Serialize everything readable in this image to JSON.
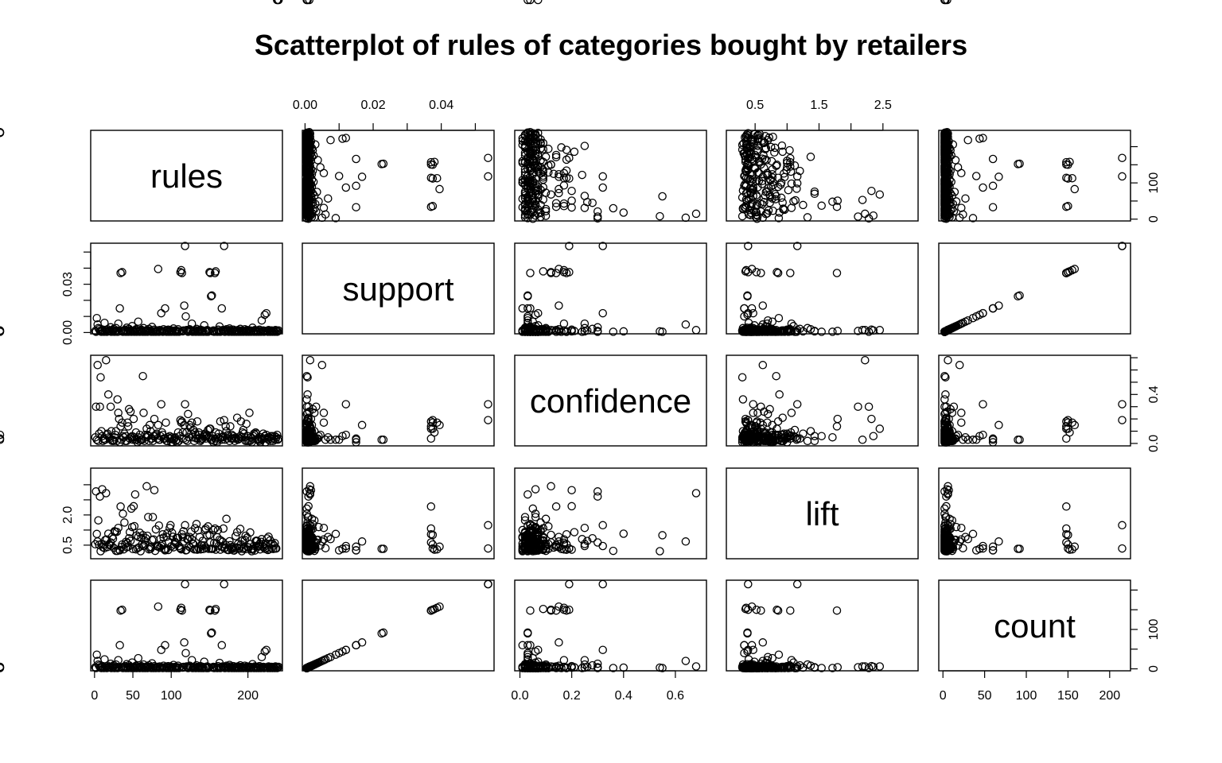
{
  "chart_data": {
    "type": "scatter",
    "title": "Scatterplot of rules of categories bought by retailers",
    "variables": [
      "rules",
      "support",
      "confidence",
      "lift",
      "count"
    ],
    "axes": {
      "rules": {
        "range": [
          -5,
          245
        ],
        "ticks": [
          0,
          50,
          100,
          200
        ],
        "tick_labels": [
          "0",
          "50",
          "100",
          "200"
        ]
      },
      "support": {
        "range": [
          -0.0008,
          0.0555
        ],
        "ticks": [
          0.0,
          0.01,
          0.02,
          0.03,
          0.04,
          0.05
        ],
        "tick_labels_top": [
          "0.00",
          "",
          "0.02",
          "",
          "0.04",
          ""
        ],
        "tick_labels_left": [
          "0.00",
          "",
          "",
          "0.03",
          "",
          ""
        ]
      },
      "confidence": {
        "range": [
          -0.02,
          0.72
        ],
        "ticks": [
          0.0,
          0.2,
          0.4,
          0.6
        ],
        "tick_labels_bottom": [
          "0.0",
          "0.2",
          "0.4",
          "0.6"
        ],
        "right_ticks": [
          0.0,
          0.1,
          0.2,
          0.3,
          0.4,
          0.5,
          0.6,
          0.7
        ],
        "tick_labels_right": [
          "0.0",
          "",
          "",
          "",
          "0.4",
          "",
          "",
          ""
        ]
      },
      "lift": {
        "range": [
          0.05,
          3.05
        ],
        "ticks": [
          0.5,
          1.0,
          1.5,
          2.0,
          2.5
        ],
        "tick_labels_top": [
          "0.5",
          "",
          "1.5",
          "",
          "2.5"
        ],
        "tick_labels_left": [
          "0.5",
          "",
          "2.0",
          "",
          ""
        ]
      },
      "count": {
        "range": [
          -5,
          225
        ],
        "ticks": [
          0,
          50,
          100,
          150,
          200
        ],
        "tick_labels": [
          "0",
          "50",
          "100",
          "150",
          "200"
        ],
        "right_ticks": [
          0,
          50,
          100,
          150,
          200
        ],
        "tick_labels_right": [
          "0",
          "",
          "100",
          "",
          ""
        ]
      }
    },
    "grid": false,
    "legend": "none",
    "point_style": "open-circle",
    "n_points": 240,
    "rules": [
      1,
      2,
      3,
      4,
      5,
      6,
      7,
      8,
      9,
      10,
      11,
      12,
      13,
      14,
      15,
      16,
      17,
      18,
      19,
      20,
      21,
      22,
      23,
      24,
      25,
      26,
      27,
      28,
      29,
      30,
      31,
      32,
      33,
      34,
      35,
      36,
      37,
      38,
      39,
      40,
      41,
      42,
      43,
      44,
      45,
      46,
      47,
      48,
      49,
      50,
      51,
      52,
      53,
      54,
      55,
      56,
      57,
      58,
      59,
      60,
      61,
      62,
      63,
      64,
      65,
      66,
      67,
      68,
      69,
      70,
      71,
      72,
      73,
      74,
      75,
      76,
      77,
      78,
      79,
      80,
      81,
      82,
      83,
      84,
      85,
      86,
      87,
      88,
      89,
      90,
      91,
      92,
      93,
      94,
      95,
      96,
      97,
      98,
      99,
      100,
      101,
      102,
      103,
      104,
      105,
      106,
      107,
      108,
      109,
      110,
      111,
      112,
      113,
      114,
      115,
      116,
      117,
      118,
      119,
      120,
      121,
      122,
      123,
      124,
      125,
      126,
      127,
      128,
      129,
      130,
      131,
      132,
      133,
      134,
      135,
      136,
      137,
      138,
      139,
      140,
      141,
      142,
      143,
      144,
      145,
      146,
      147,
      148,
      149,
      150,
      151,
      152,
      153,
      154,
      155,
      156,
      157,
      158,
      159,
      160,
      161,
      162,
      163,
      164,
      165,
      166,
      167,
      168,
      169,
      170,
      171,
      172,
      173,
      174,
      175,
      176,
      177,
      178,
      179,
      180,
      181,
      182,
      183,
      184,
      185,
      186,
      187,
      188,
      189,
      190,
      191,
      192,
      193,
      194,
      195,
      196,
      197,
      198,
      199,
      200,
      201,
      202,
      203,
      204,
      205,
      206,
      207,
      208,
      209,
      210,
      211,
      212,
      213,
      214,
      215,
      216,
      217,
      218,
      219,
      220,
      221,
      222,
      223,
      224,
      225,
      226,
      227,
      228,
      229,
      230,
      231,
      232,
      233,
      234,
      235,
      236,
      237,
      238,
      239,
      240
    ],
    "count": [
      4,
      2,
      36,
      20,
      11,
      8,
      4,
      3,
      2,
      5,
      7,
      2,
      24,
      3,
      6,
      2,
      8,
      3,
      4,
      5,
      13,
      2,
      6,
      3,
      9,
      2,
      4,
      11,
      5,
      2,
      22,
      3,
      60,
      148,
      4,
      150,
      2,
      5,
      3,
      7,
      2,
      12,
      4,
      2,
      9,
      3,
      5,
      2,
      16,
      3,
      4,
      2,
      6,
      8,
      2,
      3,
      27,
      4,
      2,
      5,
      7,
      3,
      2,
      11,
      4,
      2,
      3,
      6,
      2,
      4,
      9,
      3,
      5,
      2,
      14,
      3,
      2,
      7,
      4,
      2,
      3,
      5,
      158,
      2,
      6,
      3,
      48,
      4,
      2,
      8,
      3,
      60,
      5,
      2,
      4,
      7,
      2,
      3,
      6,
      2,
      4,
      3,
      10,
      2,
      5,
      3,
      2,
      4,
      8,
      2,
      3,
      150,
      155,
      148,
      3,
      5,
      67,
      215,
      40,
      6,
      4,
      2,
      3,
      8,
      5,
      3,
      22,
      2,
      4,
      3,
      6,
      2,
      9,
      3,
      5,
      2,
      4,
      7,
      2,
      3,
      5,
      2,
      18,
      4,
      3,
      2,
      6,
      2,
      4,
      150,
      148,
      90,
      92,
      3,
      5,
      2,
      148,
      152,
      4,
      2,
      7,
      3,
      15,
      2,
      4,
      60,
      6,
      3,
      215,
      2,
      5,
      8,
      3,
      4,
      2,
      10,
      6,
      3,
      2,
      4,
      7,
      2,
      3,
      5,
      2,
      4,
      6,
      2,
      3,
      9,
      2,
      5,
      3,
      2,
      4,
      8,
      3,
      2,
      6,
      4,
      2,
      3,
      5,
      2,
      4,
      12,
      3,
      2,
      6,
      4,
      2,
      5,
      3,
      2,
      7,
      4,
      2,
      30,
      3,
      5,
      2,
      44,
      4,
      48,
      3,
      2,
      6,
      4,
      2,
      3,
      5,
      2,
      4,
      3,
      2,
      6,
      4,
      2,
      3,
      5
    ],
    "confidence": [
      0.05,
      0.3,
      0.03,
      0.64,
      0.02,
      0.08,
      0.3,
      0.54,
      0.1,
      0.06,
      0.02,
      0.04,
      0.03,
      0.03,
      0.68,
      0.07,
      0.08,
      0.4,
      0.05,
      0.04,
      0.3,
      0.1,
      0.02,
      0.03,
      0.02,
      0.05,
      0.07,
      0.1,
      0.02,
      0.36,
      0.25,
      0.2,
      0.01,
      0.14,
      0.03,
      0.17,
      0.06,
      0.05,
      0.08,
      0.02,
      0.06,
      0.02,
      0.17,
      0.14,
      0.28,
      0.04,
      0.26,
      0.05,
      0.06,
      0.03,
      0.2,
      0.05,
      0.03,
      0.09,
      0.03,
      0.01,
      0.05,
      0.02,
      0.07,
      0.03,
      0.03,
      0.03,
      0.55,
      0.25,
      0.02,
      0.07,
      0.05,
      0.12,
      0.07,
      0.06,
      0.02,
      0.15,
      0.1,
      0.04,
      0.04,
      0.02,
      0.06,
      0.2,
      0.06,
      0.07,
      0.08,
      0.04,
      0.15,
      0.03,
      0.03,
      0.06,
      0.32,
      0.09,
      0.07,
      0.04,
      0.04,
      0.04,
      0.17,
      0.02,
      0.02,
      0.05,
      0.04,
      0.06,
      0.04,
      0.01,
      0.05,
      0.01,
      0.03,
      0.04,
      0.05,
      0.02,
      0.03,
      0.01,
      0.09,
      0.02,
      0.06,
      0.19,
      0.17,
      0.18,
      0.09,
      0.04,
      0.15,
      0.32,
      0.03,
      0.09,
      0.02,
      0.24,
      0.05,
      0.15,
      0.13,
      0.08,
      0.17,
      0.05,
      0.11,
      0.02,
      0.09,
      0.07,
      0.04,
      0.18,
      0.04,
      0.09,
      0.07,
      0.02,
      0.03,
      0.04,
      0.04,
      0.06,
      0.07,
      0.08,
      0.04,
      0.06,
      0.07,
      0.11,
      0.05,
      0.12,
      0.12,
      0.03,
      0.03,
      0.06,
      0.01,
      0.02,
      0.04,
      0.09,
      0.02,
      0.01,
      0.05,
      0.08,
      0.04,
      0.18,
      0.05,
      0.03,
      0.05,
      0.06,
      0.19,
      0.03,
      0.14,
      0.1,
      0.04,
      0.07,
      0.06,
      0.02,
      0.14,
      0.04,
      0.07,
      0.04,
      0.06,
      0.04,
      0.02,
      0.05,
      0.04,
      0.21,
      0.03,
      0.04,
      0.04,
      0.06,
      0.18,
      0.05,
      0.09,
      0.11,
      0.08,
      0.05,
      0.02,
      0.16,
      0.02,
      0.06,
      0.02,
      0.25,
      0.02,
      0.05,
      0.01,
      0.04,
      0.06,
      0.08,
      0.07,
      0.09,
      0.08,
      0.03,
      0.04,
      0.03,
      0.02,
      0.01,
      0.05,
      0.03,
      0.04,
      0.08,
      0.04,
      0.06,
      0.01,
      0.07,
      0.04,
      0.05,
      0.03,
      0.05,
      0.02,
      0.06,
      0.04,
      0.06,
      0.02,
      0.04,
      0.06,
      0.03,
      0.05,
      0.07,
      0.03,
      0.04,
      0.05,
      0.07
    ],
    "lift": [
      0.53,
      2.28,
      0.87,
      0.62,
      1.32,
      0.51,
      2.11,
      0.3,
      0.54,
      2.35,
      0.43,
      0.52,
      0.4,
      0.67,
      2.22,
      0.69,
      0.44,
      0.88,
      0.52,
      0.51,
      0.59,
      0.48,
      0.78,
      0.71,
      0.41,
      0.96,
      0.94,
      0.31,
      0.94,
      0.31,
      1.07,
      0.35,
      0.33,
      1.78,
      0.44,
      0.52,
      1.54,
      0.36,
      1.25,
      0.53,
      0.61,
      0.43,
      0.58,
      0.45,
      0.73,
      0.93,
      0.64,
      1.71,
      1.1,
      0.37,
      1.79,
      1.13,
      2.18,
      0.36,
      0.82,
      0.4,
      0.77,
      0.43,
      0.91,
      0.3,
      0.74,
      0.53,
      0.83,
      0.47,
      0.66,
      0.52,
      0.73,
      2.45,
      0.81,
      1.43,
      0.36,
      0.43,
      0.38,
      0.44,
      0.67,
      1.43,
      0.69,
      2.32,
      0.31,
      1.02,
      0.47,
      0.46,
      0.45,
      1.15,
      0.42,
      0.71,
      0.47,
      0.54,
      0.86,
      0.75,
      0.36,
      0.33,
      0.36,
      0.78,
      0.9,
      0.34,
      0.61,
      1.07,
      1.16,
      0.46,
      0.91,
      0.78,
      0.43,
      0.52,
      0.61,
      0.56,
      0.74,
      0.74,
      0.74,
      0.47,
      0.42,
      0.39,
      0.36,
      0.86,
      0.77,
      0.96,
      0.62,
      1.16,
      0.33,
      0.34,
      0.69,
      0.7,
      0.46,
      0.77,
      0.42,
      0.95,
      0.69,
      0.56,
      0.54,
      0.36,
      1.06,
      0.36,
      1.2,
      0.35,
      0.99,
      0.39,
      0.77,
      0.36,
      0.5,
      0.49,
      0.64,
      0.37,
      0.49,
      1.0,
      1.05,
      0.4,
      0.83,
      1.12,
      0.38,
      0.84,
      0.59,
      0.38,
      0.38,
      0.38,
      1.0,
      0.57,
      1.05,
      0.35,
      0.56,
      0.76,
      1.0,
      0.48,
      0.68,
      0.35,
      0.65,
      0.45,
      0.61,
      1.05,
      0.39,
      0.42,
      0.51,
      1.37,
      0.35,
      0.34,
      0.34,
      0.63,
      0.5,
      0.38,
      0.44,
      0.37,
      0.33,
      0.32,
      0.41,
      0.8,
      0.43,
      0.93,
      0.54,
      0.41,
      0.38,
      1.04,
      0.53,
      0.3,
      0.66,
      0.37,
      0.41,
      0.67,
      0.81,
      0.37,
      0.75,
      0.43,
      0.42,
      0.54,
      0.92,
      0.36,
      0.3,
      0.37,
      0.38,
      0.48,
      0.32,
      0.63,
      0.65,
      0.64,
      0.48,
      0.45,
      0.54,
      0.36,
      0.61,
      0.7,
      0.46,
      0.54,
      0.44,
      0.38,
      0.55,
      0.39,
      0.72,
      0.34,
      0.78,
      0.36,
      0.66,
      0.53,
      0.39,
      0.55,
      0.37,
      0.49,
      0.57,
      0.39,
      0.39
    ]
  }
}
